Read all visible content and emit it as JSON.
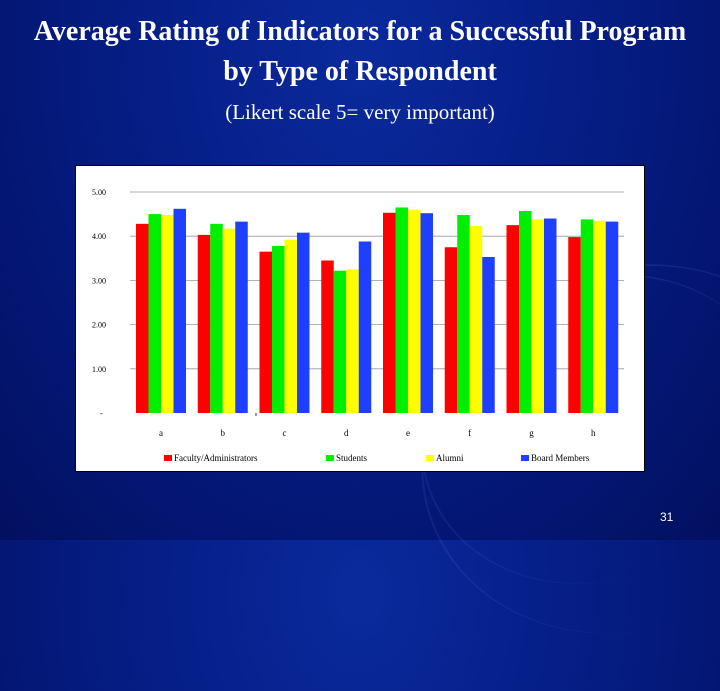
{
  "slide": {
    "title_line1": "Average Rating of Indicators for a Successful Program",
    "title_line2": "by Type of Respondent",
    "subtitle": "(Likert scale 5= very important)",
    "page_number": "31"
  },
  "chart_data": {
    "type": "bar",
    "categories": [
      "a",
      "b",
      "c",
      "d",
      "e",
      "f",
      "g",
      "h"
    ],
    "series": [
      {
        "name": "Faculty/Administrators",
        "color": "#ff0000",
        "values": [
          4.28,
          4.03,
          3.65,
          3.45,
          4.53,
          3.75,
          4.25,
          3.98
        ]
      },
      {
        "name": "Students",
        "color": "#00ee00",
        "values": [
          4.5,
          4.28,
          3.78,
          3.22,
          4.65,
          4.48,
          4.57,
          4.38
        ]
      },
      {
        "name": "Alumni",
        "color": "#ffff00",
        "values": [
          4.48,
          4.17,
          3.92,
          3.25,
          4.6,
          4.23,
          4.38,
          4.35
        ]
      },
      {
        "name": "Board Members",
        "color": "#1f3fff",
        "values": [
          4.62,
          4.33,
          4.08,
          3.88,
          4.52,
          3.53,
          4.4,
          4.33
        ]
      }
    ],
    "yticks": [
      "-",
      "1.00",
      "2.00",
      "3.00",
      "4.00",
      "5.00"
    ],
    "ylim": [
      0,
      5
    ],
    "grid": true,
    "legend_position": "bottom"
  }
}
